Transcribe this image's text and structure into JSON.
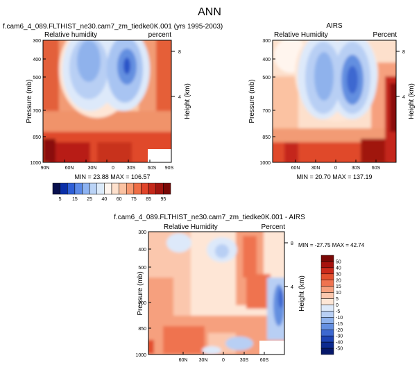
{
  "figure": {
    "title": "ANN"
  },
  "chart_data": [
    {
      "type": "heatmap",
      "title": "f.cam6_4_089.FLTHIST_ne30.cam7_zm_tiedke0K.001 (yrs 1995-2003)",
      "left_label": "Relative humidity",
      "right_label": "percent",
      "ylabel": "Pressure (mb)",
      "y2label": "Height (km)",
      "x_ticks": [
        "90N",
        "60N",
        "30N",
        "0",
        "30S",
        "60S",
        "90S"
      ],
      "y_ticks": [
        "300",
        "400",
        "500",
        "700",
        "850",
        "1000"
      ],
      "y2_ticks": [
        "8",
        "4"
      ],
      "stats": "MIN = 23.88  MAX = 106.57",
      "min": 23.88,
      "max": 106.57,
      "xlim": [
        90,
        -90
      ],
      "ylim": [
        1000,
        300
      ]
    },
    {
      "type": "heatmap",
      "title": "AIRS",
      "left_label": "Relative Humidity",
      "right_label": "Percent",
      "ylabel": "Pressure (mb)",
      "y2label": "Height (km)",
      "x_ticks": [
        "60N",
        "30N",
        "0",
        "30S",
        "60S"
      ],
      "y_ticks": [
        "300",
        "400",
        "500",
        "700",
        "850",
        "1000"
      ],
      "y2_ticks": [
        "8",
        "4"
      ],
      "stats": "MIN = 20.70  MAX = 137.19",
      "min": 20.7,
      "max": 137.19,
      "xlim": [
        90,
        -90
      ],
      "ylim": [
        1000,
        300
      ]
    },
    {
      "type": "heatmap",
      "title": "f.cam6_4_089.FLTHIST_ne30.cam7_zm_tiedke0K.001 - AIRS",
      "left_label": "Relative Humidity",
      "right_label": "Percent",
      "ylabel": "Pressure (mb)",
      "y2label": "Height (km)",
      "x_ticks": [
        "60N",
        "30N",
        "0",
        "30S",
        "60S"
      ],
      "y_ticks": [
        "300",
        "400",
        "500",
        "700",
        "850",
        "1000"
      ],
      "y2_ticks": [
        "8",
        "4"
      ],
      "stats": "MIN = -27.75  MAX = 42.74",
      "min": -27.75,
      "max": 42.74,
      "xlim": [
        90,
        -90
      ],
      "ylim": [
        1000,
        300
      ]
    }
  ],
  "colorbar_main": {
    "labels": [
      "5",
      "15",
      "25",
      "40",
      "60",
      "75",
      "85",
      "95"
    ],
    "colors": [
      "#08104e",
      "#0a2fa8",
      "#2f5fd6",
      "#5c8ae8",
      "#8db3f2",
      "#bad3f6",
      "#dceaf9",
      "#fff5ee",
      "#fde0cc",
      "#fbc2a2",
      "#f79a72",
      "#ef6e46",
      "#e0452a",
      "#c4281a",
      "#a0140f",
      "#7a0806"
    ]
  },
  "colorbar_diff": {
    "labels": [
      "50",
      "40",
      "30",
      "20",
      "15",
      "10",
      "5",
      "0",
      "-5",
      "-10",
      "-15",
      "-20",
      "-30",
      "-40",
      "-50"
    ],
    "colors": [
      "#7a0806",
      "#a6120e",
      "#cc2a1c",
      "#e3502f",
      "#ef7350",
      "#f6a07e",
      "#fbc7ad",
      "#fee6d6",
      "#dde9fa",
      "#b8cff4",
      "#8fb2ec",
      "#648fe0",
      "#3d68d0",
      "#1d43b4",
      "#0c2a90",
      "#06186a"
    ]
  }
}
